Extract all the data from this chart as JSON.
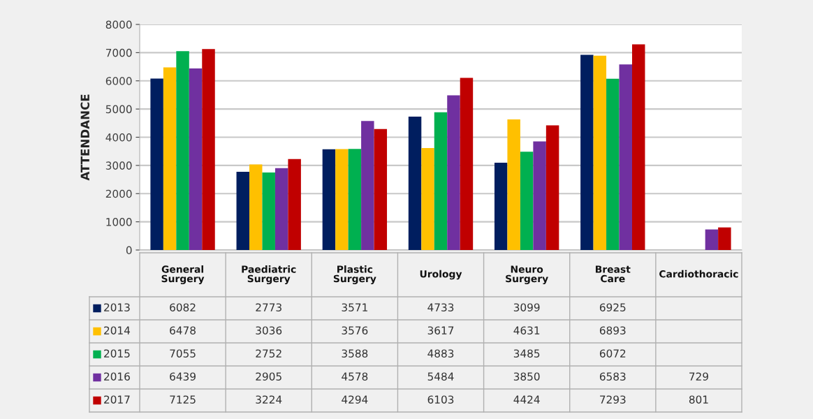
{
  "chart_data": {
    "type": "bar",
    "ylabel": "ATTENDANCE",
    "categories": [
      "General\nSurgery",
      "Paediatric\nSurgery",
      "Plastic\nSurgery",
      "Urology",
      "Neuro\nSurgery",
      "Breast\nCare",
      "Cardiothoracic"
    ],
    "series": [
      {
        "name": "2013",
        "color": "#001e5f",
        "values": [
          6082,
          2773,
          3571,
          4733,
          3099,
          6925,
          null
        ]
      },
      {
        "name": "2014",
        "color": "#ffc000",
        "values": [
          6478,
          3036,
          3576,
          3617,
          4631,
          6893,
          null
        ]
      },
      {
        "name": "2015",
        "color": "#00b050",
        "values": [
          7055,
          2752,
          3588,
          4883,
          3485,
          6072,
          null
        ]
      },
      {
        "name": "2016",
        "color": "#7030a0",
        "values": [
          6439,
          2905,
          4578,
          5484,
          3850,
          6583,
          729
        ]
      },
      {
        "name": "2017",
        "color": "#c00000",
        "values": [
          7125,
          3224,
          4294,
          6103,
          4424,
          7293,
          801
        ]
      }
    ],
    "ylim": [
      0,
      8000
    ],
    "yticks": [
      0,
      1000,
      2000,
      3000,
      4000,
      5000,
      6000,
      7000,
      8000
    ],
    "grid": "y",
    "legend": "bottom",
    "data_labels": true
  }
}
